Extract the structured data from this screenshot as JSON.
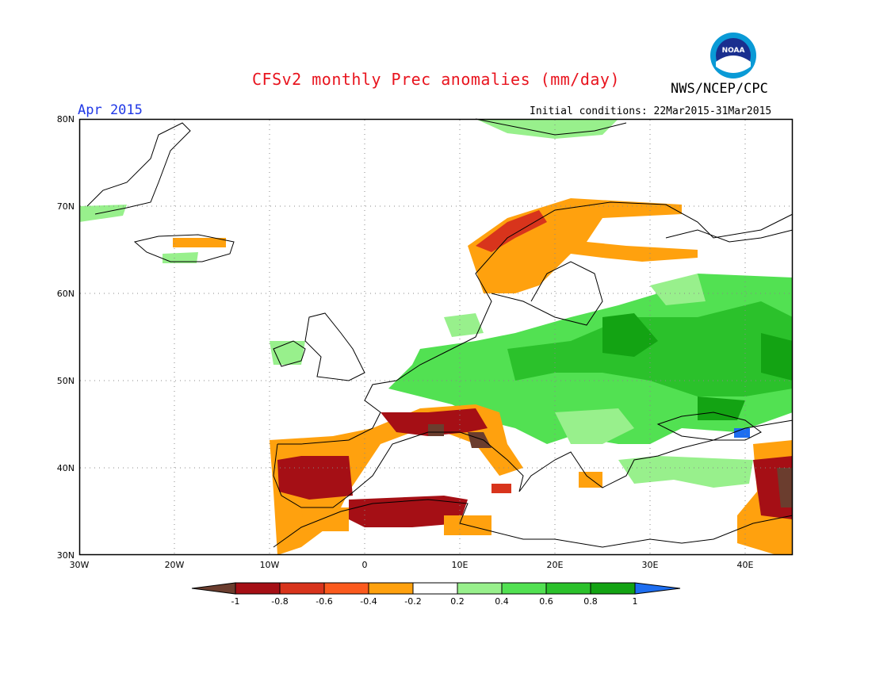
{
  "header": {
    "title": "CFSv2 monthly Prec anomalies (mm/day)",
    "organization": "NWS/NCEP/CPC",
    "month": "Apr 2015",
    "initial_conditions": "Initial conditions: 22Mar2015-31Mar2015",
    "logo_text": "NOAA"
  },
  "axes": {
    "lat_labels": [
      "80N",
      "70N",
      "60N",
      "50N",
      "40N",
      "30N"
    ],
    "lon_labels": [
      "30W",
      "20W",
      "10W",
      "0",
      "10E",
      "20E",
      "30E",
      "40E"
    ]
  },
  "colorbar": {
    "ticks": [
      "-1",
      "-0.8",
      "-0.6",
      "-0.4",
      "-0.2",
      "0.2",
      "0.4",
      "0.6",
      "0.8",
      "1"
    ],
    "colors": [
      "#6b3d2e",
      "#a50f15",
      "#d8341c",
      "#fb5a1e",
      "#ffa10e",
      "#ffffff",
      "#98f08c",
      "#52e152",
      "#2bc12b",
      "#13a313",
      "#1e6ef0"
    ]
  }
}
